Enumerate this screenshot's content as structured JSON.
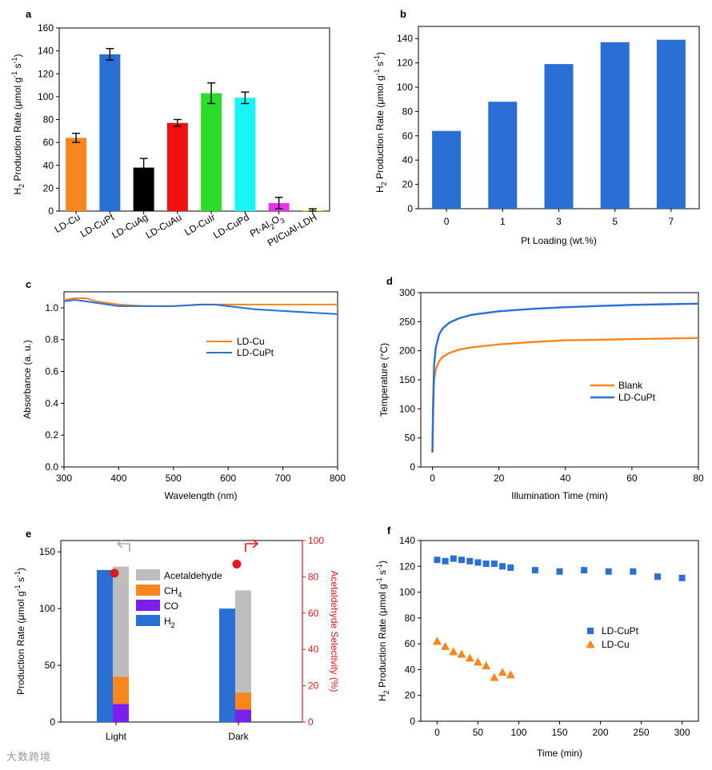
{
  "colors": {
    "orange": "#f7861f",
    "blue": "#2a6fd4",
    "black": "#000000",
    "red": "#f50f0f",
    "green": "#2bdc29",
    "cyan": "#19f5f5",
    "magenta": "#ee2fee",
    "yellow": "#f2f22a",
    "gray": "#bdbdbd",
    "purple": "#7b1fee",
    "selectivity": "#e01a1a"
  },
  "watermark": "大数跨境",
  "chart_data": [
    {
      "panel": "a",
      "type": "bar",
      "ylabel_pre": "H",
      "ylabel_sub": "2",
      "ylabel_post": " Production Rate (μmol g",
      "ylabel_sup1": "-1",
      "ylabel_mid": " s",
      "ylabel_sup2": "-1",
      "ylabel_end": ")",
      "ylim": [
        0,
        160
      ],
      "yticks": [
        0,
        20,
        40,
        60,
        80,
        100,
        120,
        140,
        160
      ],
      "categories": [
        "LD-Cu",
        "LD-CuPt",
        "LD-CuAg",
        "LD-CuAu",
        "LD-CuIr",
        "LD-CuPd",
        "Pt-Al2O3",
        "Pt/CuAl-LDH"
      ],
      "category_parts": [
        [
          "LD-Cu"
        ],
        [
          "LD-CuPt"
        ],
        [
          "LD-CuAg"
        ],
        [
          "LD-CuAu"
        ],
        [
          "LD-CuIr"
        ],
        [
          "LD-CuPd"
        ],
        [
          "Pt-Al",
          "2",
          "O",
          "3"
        ],
        [
          "Pt/CuAl-LDH"
        ]
      ],
      "values": [
        64,
        137,
        38,
        77,
        103,
        99,
        7,
        1
      ],
      "errors": [
        4,
        5,
        8,
        3,
        9,
        5,
        5,
        1
      ],
      "bar_colors": [
        "orange",
        "blue",
        "black",
        "red",
        "green",
        "cyan",
        "magenta",
        "yellow"
      ]
    },
    {
      "panel": "b",
      "type": "bar",
      "xlabel": "Pt Loading (wt.%)",
      "ylabel_pre": "H",
      "ylabel_sub": "2",
      "ylabel_post": " Production Rate (μmol g",
      "ylabel_sup1": "-1",
      "ylabel_mid": " s",
      "ylabel_sup2": "-1",
      "ylabel_end": ")",
      "ylim": [
        0,
        150
      ],
      "yticks": [
        0,
        20,
        40,
        60,
        80,
        100,
        120,
        140
      ],
      "categories": [
        "0",
        "1",
        "3",
        "5",
        "7"
      ],
      "values": [
        64,
        88,
        119,
        137,
        139
      ]
    },
    {
      "panel": "c",
      "type": "line",
      "xlabel": "Wavelength (nm)",
      "ylabel": "Absorbance (a. u.)",
      "xlim": [
        300,
        800
      ],
      "ylim": [
        0,
        1.1
      ],
      "xticks": [
        300,
        400,
        500,
        600,
        700,
        800
      ],
      "yticks": [
        0.0,
        0.2,
        0.4,
        0.6,
        0.8,
        1.0
      ],
      "ytick_labels": [
        "0.0",
        "0.2",
        "0.4",
        "0.6",
        "0.8",
        "1.0"
      ],
      "series": [
        {
          "name": "LD-Cu",
          "color": "orange",
          "x": [
            300,
            320,
            340,
            360,
            380,
            400,
            450,
            500,
            550,
            575,
            600,
            650,
            700,
            750,
            800
          ],
          "y": [
            1.05,
            1.06,
            1.06,
            1.04,
            1.03,
            1.02,
            1.01,
            1.01,
            1.02,
            1.02,
            1.02,
            1.02,
            1.02,
            1.02,
            1.02
          ]
        },
        {
          "name": "LD-CuPt",
          "color": "blue",
          "x": [
            300,
            320,
            340,
            360,
            380,
            400,
            450,
            500,
            550,
            575,
            600,
            650,
            700,
            750,
            800
          ],
          "y": [
            1.04,
            1.05,
            1.04,
            1.03,
            1.02,
            1.01,
            1.01,
            1.01,
            1.02,
            1.02,
            1.01,
            0.99,
            0.98,
            0.97,
            0.96
          ]
        }
      ]
    },
    {
      "panel": "d",
      "type": "line",
      "xlabel": "Illumination Time (min)",
      "ylabel": "Temperature (°C)",
      "xlim": [
        0,
        80
      ],
      "ylim": [
        0,
        300
      ],
      "xticks": [
        0,
        20,
        40,
        60,
        80
      ],
      "yticks": [
        0,
        50,
        100,
        150,
        200,
        250,
        300
      ],
      "series": [
        {
          "name": "Blank",
          "color": "orange",
          "x": [
            0,
            0.2,
            0.5,
            1,
            2,
            3,
            5,
            8,
            12,
            20,
            30,
            40,
            50,
            60,
            70,
            80
          ],
          "y": [
            25,
            90,
            150,
            168,
            182,
            189,
            196,
            202,
            206,
            211,
            215,
            218,
            219,
            220,
            221,
            222
          ]
        },
        {
          "name": "LD-CuPt",
          "color": "blue",
          "x": [
            0,
            0.2,
            0.5,
            1,
            2,
            3,
            5,
            8,
            12,
            20,
            30,
            40,
            50,
            60,
            70,
            80
          ],
          "y": [
            25,
            110,
            175,
            205,
            228,
            238,
            248,
            256,
            262,
            268,
            272,
            275,
            277,
            279,
            280,
            281
          ]
        }
      ]
    },
    {
      "panel": "e",
      "type": "bar",
      "ylabel_pre": "Production Rate (μmol g",
      "ylabel_sup1": "-1",
      "ylabel_mid": " s",
      "ylabel_sup2": "-1",
      "ylabel_end": ")",
      "y2label": "Acetaldehyde Selectivity (%)",
      "ylim": [
        0,
        160
      ],
      "yticks": [
        0,
        50,
        100,
        150
      ],
      "y2lim": [
        0,
        100
      ],
      "y2ticks": [
        0,
        20,
        40,
        60,
        80,
        100
      ],
      "categories": [
        "Light",
        "Dark"
      ],
      "series": [
        {
          "name": "H2",
          "label_main": "H",
          "label_sub": "2",
          "color": "blue",
          "values": [
            134,
            100
          ]
        },
        {
          "name": "CO",
          "label_main": "CO",
          "label_sub": "",
          "color": "purple",
          "values": [
            16,
            11
          ]
        },
        {
          "name": "CH4",
          "label_main": "CH",
          "label_sub": "4",
          "color": "orange",
          "values": [
            24,
            15
          ]
        },
        {
          "name": "Acetaldehyde",
          "label_main": "Acetaldehyde",
          "label_sub": "",
          "color": "gray",
          "values": [
            97,
            90
          ]
        }
      ],
      "selectivity": [
        82,
        87
      ]
    },
    {
      "panel": "f",
      "type": "scatter",
      "xlabel": "Time (min)",
      "ylabel_pre": "H",
      "ylabel_sub": "2",
      "ylabel_post": " Production Rate (μmol g",
      "ylabel_sup1": "-1",
      "ylabel_mid": " s",
      "ylabel_sup2": "-1",
      "ylabel_end": ")",
      "xlim": [
        -20,
        320
      ],
      "ylim": [
        0,
        140
      ],
      "xticks": [
        0,
        50,
        100,
        150,
        200,
        250,
        300
      ],
      "yticks": [
        0,
        20,
        40,
        60,
        80,
        100,
        120,
        140
      ],
      "series": [
        {
          "name": "LD-CuPt",
          "marker": "square",
          "color": "blue",
          "x": [
            0,
            10,
            20,
            30,
            40,
            50,
            60,
            70,
            80,
            90,
            120,
            150,
            180,
            210,
            240,
            270,
            300
          ],
          "y": [
            125,
            124,
            126,
            125,
            124,
            123,
            122,
            122,
            120,
            119,
            117,
            116,
            117,
            116,
            116,
            112,
            111
          ]
        },
        {
          "name": "LD-Cu",
          "marker": "triangle",
          "color": "orange",
          "x": [
            0,
            10,
            20,
            30,
            40,
            50,
            60,
            70,
            80,
            90
          ],
          "y": [
            62,
            58,
            54,
            52,
            49,
            46,
            43,
            34,
            38,
            36
          ]
        }
      ]
    }
  ]
}
